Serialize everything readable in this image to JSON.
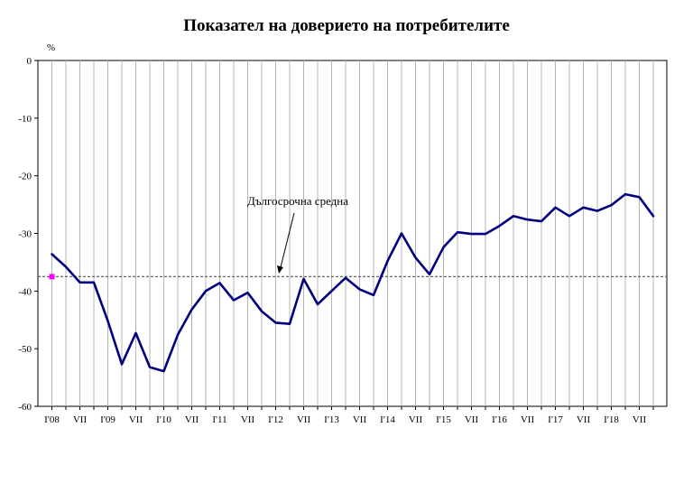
{
  "chart_data": {
    "type": "line",
    "title": "Показател на доверието на потребителите",
    "ylabel": "%",
    "ylim": [
      -60,
      0
    ],
    "yticks": [
      0,
      -10,
      -20,
      -30,
      -40,
      -50,
      -60
    ],
    "grid": "vertical",
    "x_tick_labels": [
      "I'08",
      "VII",
      "I'09",
      "VII",
      "I'10",
      "VII",
      "I'11",
      "VII",
      "I'12",
      "VII",
      "I'13",
      "VII",
      "I'14",
      "VII",
      "I'15",
      "VII",
      "I'16",
      "VII",
      "I'17",
      "VII",
      "I'18",
      "VII"
    ],
    "x": [
      "I'08",
      "IV'08",
      "VII'08",
      "X'08",
      "I'09",
      "IV'09",
      "VII'09",
      "X'09",
      "I'10",
      "IV'10",
      "VII'10",
      "X'10",
      "I'11",
      "IV'11",
      "VII'11",
      "X'11",
      "I'12",
      "IV'12",
      "VII'12",
      "X'12",
      "I'13",
      "IV'13",
      "VII'13",
      "X'13",
      "I'14",
      "IV'14",
      "VII'14",
      "X'14",
      "I'15",
      "IV'15",
      "VII'15",
      "X'15",
      "I'16",
      "IV'16",
      "VII'16",
      "X'16",
      "I'17",
      "IV'17",
      "VII'17",
      "X'17",
      "I'18",
      "IV'18",
      "VII'18",
      "X'18"
    ],
    "series": [
      {
        "name": "",
        "color": "#000080",
        "values": [
          -33.6,
          -35.8,
          -38.5,
          -38.5,
          -45.2,
          -52.7,
          -47.3,
          -53.2,
          -53.9,
          -47.6,
          -43.2,
          -40,
          -38.6,
          -41.6,
          -40.3,
          -43.5,
          -45.5,
          -45.7,
          -37.9,
          -42.3,
          -40,
          -37.7,
          -39.7,
          -40.7,
          -34.8,
          -30,
          -34.2,
          -37.1,
          -32.4,
          -29.8,
          -30.1,
          -30.1,
          -28.7,
          -27,
          -27.6,
          -27.9,
          -25.5,
          -27,
          -25.5,
          -26.1,
          -25.1,
          -23.2,
          -23.7,
          -27
        ]
      }
    ],
    "reference_line": {
      "label": "Дългосрочна средна",
      "value": -37.5,
      "color": "#666666"
    },
    "marker": {
      "value": -37.5,
      "color": "#ff00ff"
    }
  }
}
